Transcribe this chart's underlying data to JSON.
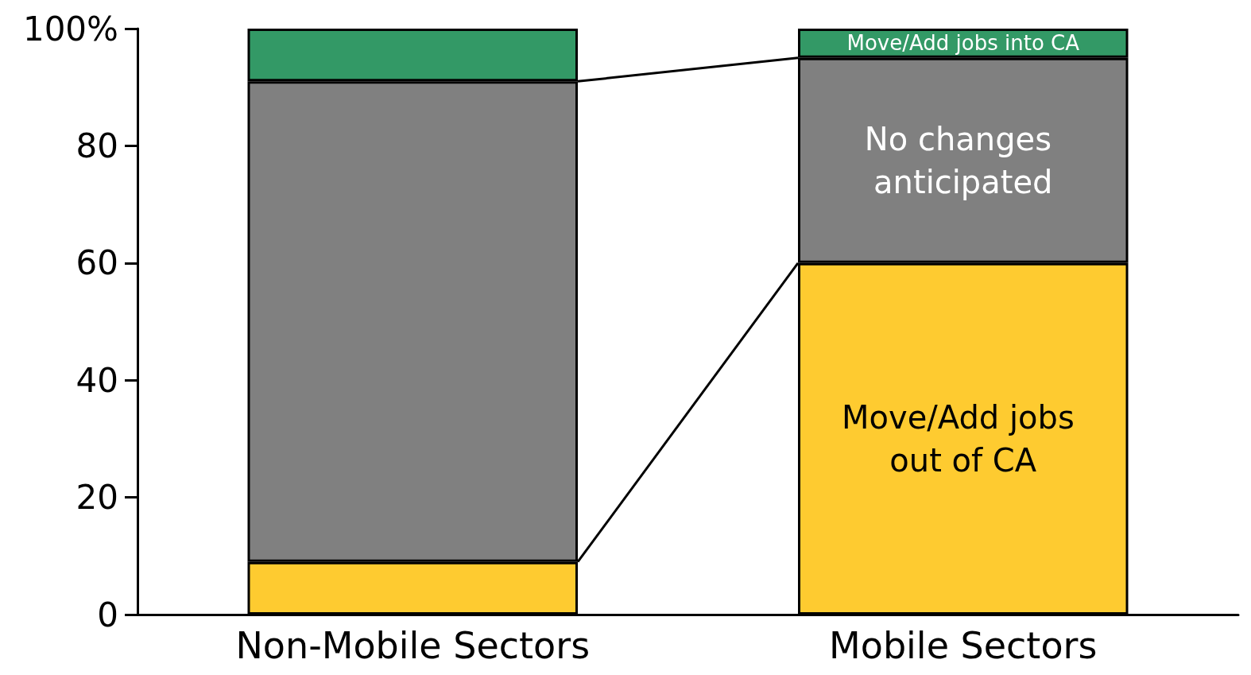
{
  "chart_data": {
    "type": "bar",
    "stacked": true,
    "categories": [
      "Non-Mobile Sectors",
      "Mobile Sectors"
    ],
    "series": [
      {
        "name": "Move/Add jobs out of CA",
        "color": "#fecb30",
        "values": [
          9,
          60
        ]
      },
      {
        "name": "No changes anticipated",
        "color": "#808080",
        "values": [
          82,
          35
        ]
      },
      {
        "name": "Move/Add jobs into CA",
        "color": "#339966",
        "values": [
          9,
          5
        ]
      }
    ],
    "ylim": [
      0,
      100
    ],
    "yticks": [
      0,
      20,
      40,
      60,
      80,
      {
        "value": 100,
        "label": "100%"
      }
    ],
    "grid": false,
    "legend": false
  }
}
